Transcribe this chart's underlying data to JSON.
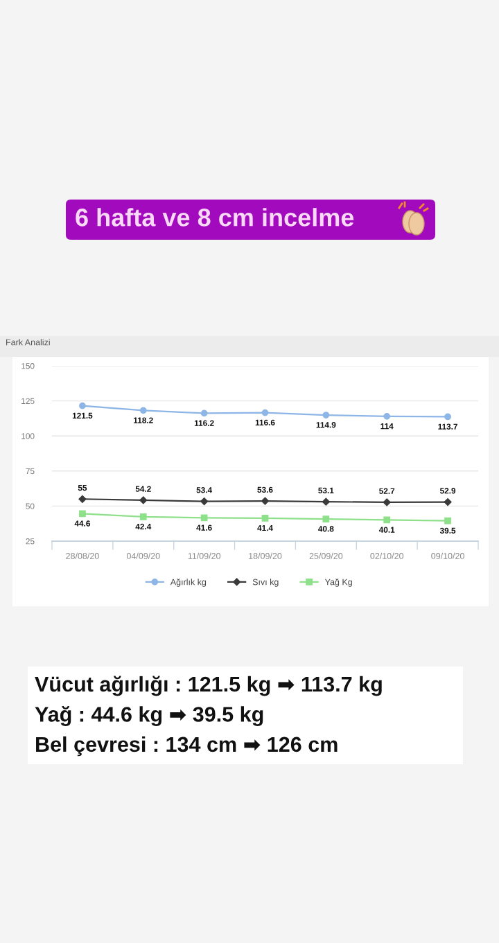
{
  "chart_data": {
    "type": "line",
    "title": "6 hafta ve 8 cm incelme",
    "subtitle": "Fark Analizi",
    "categories": [
      "28/08/20",
      "04/09/20",
      "11/09/20",
      "18/09/20",
      "25/09/20",
      "02/10/20",
      "09/10/20"
    ],
    "series": [
      {
        "name": "Ağırlık kg",
        "color": "#8db6e6",
        "marker": "circle",
        "values": [
          121.5,
          118.2,
          116.2,
          116.6,
          114.9,
          114,
          113.7
        ]
      },
      {
        "name": "Sıvı kg",
        "color": "#3a3a3a",
        "marker": "diamond",
        "values": [
          55,
          54.2,
          53.4,
          53.6,
          53.1,
          52.7,
          52.9
        ]
      },
      {
        "name": "Yağ Kg",
        "color": "#8ee08a",
        "marker": "square",
        "values": [
          44.6,
          42.4,
          41.6,
          41.4,
          40.8,
          40.1,
          39.5
        ]
      }
    ],
    "ylim": [
      25,
      150
    ],
    "yticks": [
      25,
      50,
      75,
      100,
      125,
      150
    ],
    "grid": "y",
    "legend": "bottom",
    "data_labels": true,
    "annotations": [
      "Vücut ağırlığı : 121.5 kg ➡ 113.7 kg",
      "Yağ : 44.6 kg ➡ 39.5 kg",
      "Bel çevresi : 134 cm ➡ 126 cm"
    ]
  }
}
